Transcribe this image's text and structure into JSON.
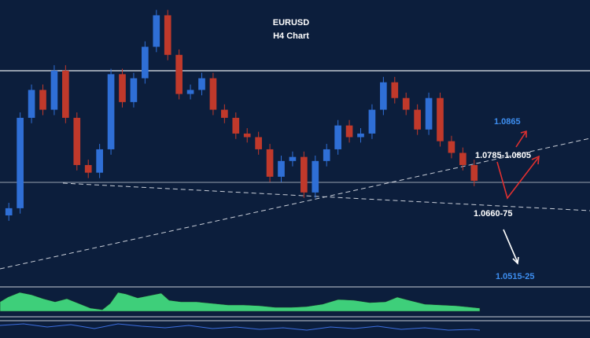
{
  "chart_data": {
    "type": "candlestick",
    "title": "EURUSD",
    "subtitle": "H4 Chart",
    "ylim": [
      1.0501,
      1.1139
    ],
    "up_color": "#2f6fd6",
    "down_color": "#c0392b",
    "open": [
      1.066,
      1.0676,
      1.0877,
      1.0939,
      1.0895,
      1.0982,
      1.0877,
      1.0772,
      1.0755,
      1.0807,
      1.0974,
      1.0912,
      1.0965,
      1.1035,
      1.1105,
      1.1017,
      1.093,
      1.0939,
      1.0965,
      1.0895,
      1.0877,
      1.0842,
      1.0834,
      1.0807,
      1.0746,
      1.0781,
      1.079,
      1.0711,
      1.0781,
      1.0807,
      1.086,
      1.0834,
      1.0842,
      1.0895,
      1.0956,
      1.0921,
      1.0895,
      1.0851,
      1.0921,
      1.0825,
      1.0799,
      1.0772
    ],
    "high": [
      1.0688,
      1.0889,
      1.0951,
      1.0951,
      1.0994,
      1.0994,
      1.0889,
      1.0784,
      1.0819,
      1.0986,
      1.0986,
      1.0977,
      1.1047,
      1.1117,
      1.1117,
      1.1029,
      1.0951,
      1.0977,
      1.0977,
      1.0907,
      1.0889,
      1.0854,
      1.0846,
      1.0819,
      1.0793,
      1.0802,
      1.0802,
      1.0793,
      1.0819,
      1.0872,
      1.0872,
      1.0854,
      1.0907,
      1.0968,
      1.0968,
      1.0933,
      1.0907,
      1.0933,
      1.0933,
      1.0837,
      1.0811,
      1.0784
    ],
    "low": [
      1.0648,
      1.0664,
      1.0865,
      1.0883,
      1.0883,
      1.0865,
      1.076,
      1.0743,
      1.0743,
      1.0795,
      1.09,
      1.09,
      1.0953,
      1.1023,
      1.1005,
      1.0918,
      1.0918,
      1.0927,
      1.0883,
      1.0865,
      1.083,
      1.0822,
      1.0795,
      1.0734,
      1.0734,
      1.0769,
      1.0699,
      1.0699,
      1.0769,
      1.0795,
      1.0822,
      1.0822,
      1.083,
      1.0883,
      1.0909,
      1.0883,
      1.0839,
      1.0839,
      1.0813,
      1.0787,
      1.076,
      1.0725
    ],
    "close": [
      1.0676,
      1.0877,
      1.0939,
      1.0895,
      1.0982,
      1.0877,
      1.0772,
      1.0755,
      1.0807,
      1.0974,
      1.0912,
      1.0965,
      1.1035,
      1.1105,
      1.1017,
      1.093,
      1.0939,
      1.0965,
      1.0895,
      1.0877,
      1.0842,
      1.0834,
      1.0807,
      1.0746,
      1.0781,
      1.079,
      1.0711,
      1.0781,
      1.0807,
      1.086,
      1.0834,
      1.0842,
      1.0895,
      1.0956,
      1.0921,
      1.0895,
      1.0851,
      1.0921,
      1.0825,
      1.0799,
      1.0772,
      1.0737
    ],
    "annotations": [
      {
        "text": "1.0865",
        "color": "#3d8ef0"
      },
      {
        "text": "1.0785-1.0805",
        "color": "#ffffff"
      },
      {
        "text": "1.0660-75",
        "color": "#ffffff"
      },
      {
        "text": "1.0515-25",
        "color": "#3d8ef0"
      }
    ]
  }
}
